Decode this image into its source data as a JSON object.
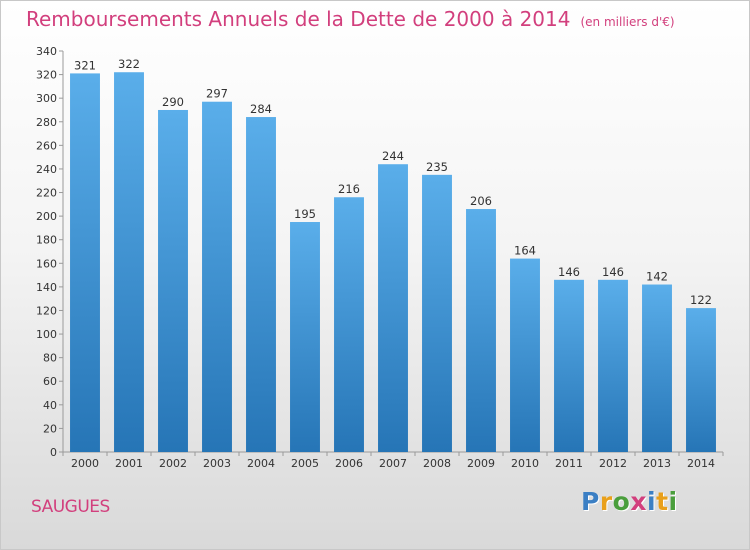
{
  "chart_data": {
    "type": "bar",
    "title": "Remboursements Annuels de la Dette de 2000 à 2014",
    "subtitle": "(en milliers d'€)",
    "categories": [
      "2000",
      "2001",
      "2002",
      "2003",
      "2004",
      "2005",
      "2006",
      "2007",
      "2008",
      "2009",
      "2010",
      "2011",
      "2012",
      "2013",
      "2014"
    ],
    "values": [
      321,
      322,
      290,
      297,
      284,
      195,
      216,
      244,
      235,
      206,
      164,
      146,
      146,
      142,
      122
    ],
    "ylim": [
      0,
      340
    ],
    "yticks": [
      0,
      20,
      40,
      60,
      80,
      100,
      120,
      140,
      160,
      180,
      200,
      220,
      240,
      260,
      280,
      300,
      320,
      340
    ],
    "grid": false,
    "colors": {
      "bar_top": "#5aaeea",
      "bar_bottom": "#2675b6",
      "title": "#d23f7d"
    }
  },
  "place": "SAUGUES",
  "logo": {
    "text": "Proxiti",
    "letter_colors": [
      "#3b7fc4",
      "#e9a01b",
      "#4a9e3c",
      "#d23f7d",
      "#3b7fc4",
      "#e9a01b",
      "#4a9e3c"
    ]
  }
}
